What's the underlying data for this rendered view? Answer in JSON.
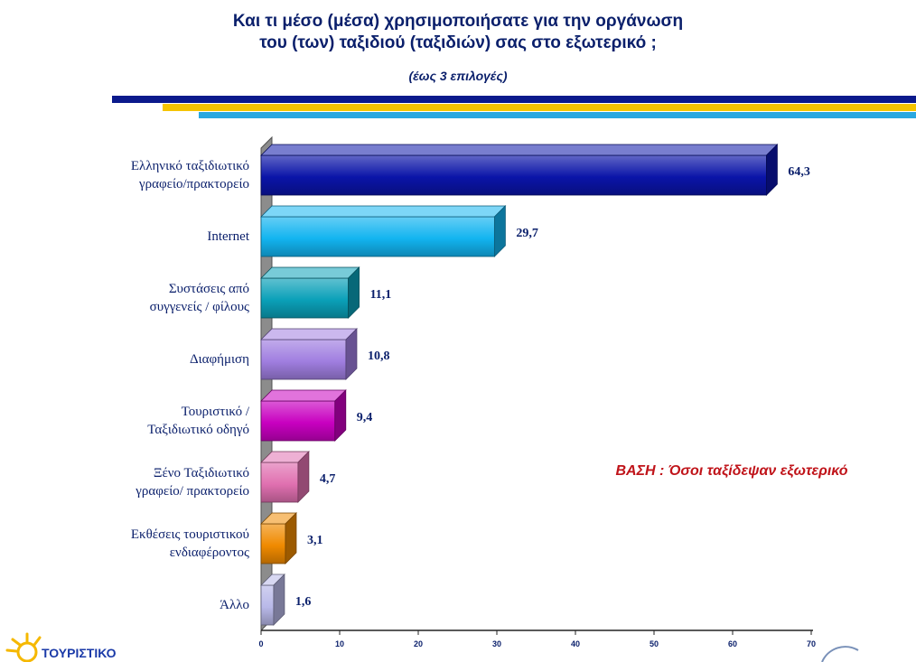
{
  "header": {
    "title_line1": "Και τι μέσο (μέσα) χρησιμοποιήσατε για την οργάνωση",
    "title_line2": "του (των) ταξιδιού (ταξιδιών) σας στο εξωτερικό ;",
    "subtitle": "(έως 3 επιλογές)"
  },
  "note": "ΒΑΣΗ : Όσοι ταξίδεψαν εξωτερικό",
  "logo": {
    "text": "ΤΟΥΡΙΣΤΙΚΟ"
  },
  "colors": {
    "stripe_navy": "#0b1a8c",
    "stripe_yellow": "#f5c400",
    "stripe_blue": "#2aa8e0",
    "note_red": "#c0141a"
  },
  "chart_data": {
    "type": "bar",
    "orientation": "horizontal",
    "title": "Και τι μέσο (μέσα) χρησιμοποιήσατε για την οργάνωση του (των) ταξιδιού (ταξιδιών) σας στο εξωτερικό ;",
    "subtitle": "(έως 3 επιλογές)",
    "categories": [
      [
        "Ελληνικό ταξιδιωτικό",
        "γραφείο/πρακτορείο"
      ],
      [
        "Internet"
      ],
      [
        "Συστάσεις από",
        "συγγενείς / φίλους"
      ],
      [
        "Διαφήμιση"
      ],
      [
        "Τουριστικό /",
        "Ταξιδιωτικό οδηγό"
      ],
      [
        "Ξένο Ταξιδιωτικό",
        "γραφείο/ πρακτορείο"
      ],
      [
        "Εκθέσεις τουριστικού",
        "ενδιαφέροντος"
      ],
      [
        "Άλλο"
      ]
    ],
    "values": [
      64.3,
      29.7,
      11.1,
      10.8,
      9.4,
      4.7,
      3.1,
      1.6
    ],
    "value_labels": [
      "64,3",
      "29,7",
      "11,1",
      "10,8",
      "9,4",
      "4,7",
      "3,1",
      "1,6"
    ],
    "bar_colors": [
      "#0a14a8",
      "#12b4f0",
      "#0aa0b8",
      "#a07ee0",
      "#c800c0",
      "#e070b0",
      "#f08a00",
      "#b8b8e8"
    ],
    "xlim": [
      0,
      70
    ],
    "xticks": [
      0,
      10,
      20,
      30,
      40,
      50,
      60,
      70
    ],
    "grid": false,
    "legend": "none"
  }
}
